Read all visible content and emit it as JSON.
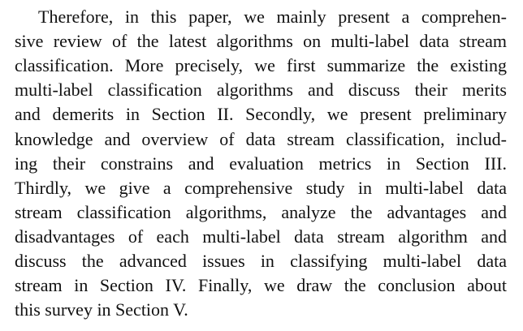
{
  "paragraph": {
    "lines": [
      "Therefore, in this paper, we mainly present a comprehen-",
      "sive review of the latest algorithms on multi-label data stream",
      "classification. More precisely, we first summarize the existing",
      "multi-label classification algorithms and discuss their merits",
      "and demerits in Section II. Secondly, we present preliminary",
      "knowledge and overview of data stream classification, includ-",
      "ing their constrains and evaluation metrics in Section III.",
      "Thirdly, we give a comprehensive study in multi-label data",
      "stream classification algorithms, analyze the advantages and",
      "disadvantages of each multi-label data stream algorithm and",
      "discuss the advanced issues in classifying multi-label data",
      "stream in Section IV. Finally, we draw the conclusion about",
      "this survey in Section V."
    ]
  }
}
